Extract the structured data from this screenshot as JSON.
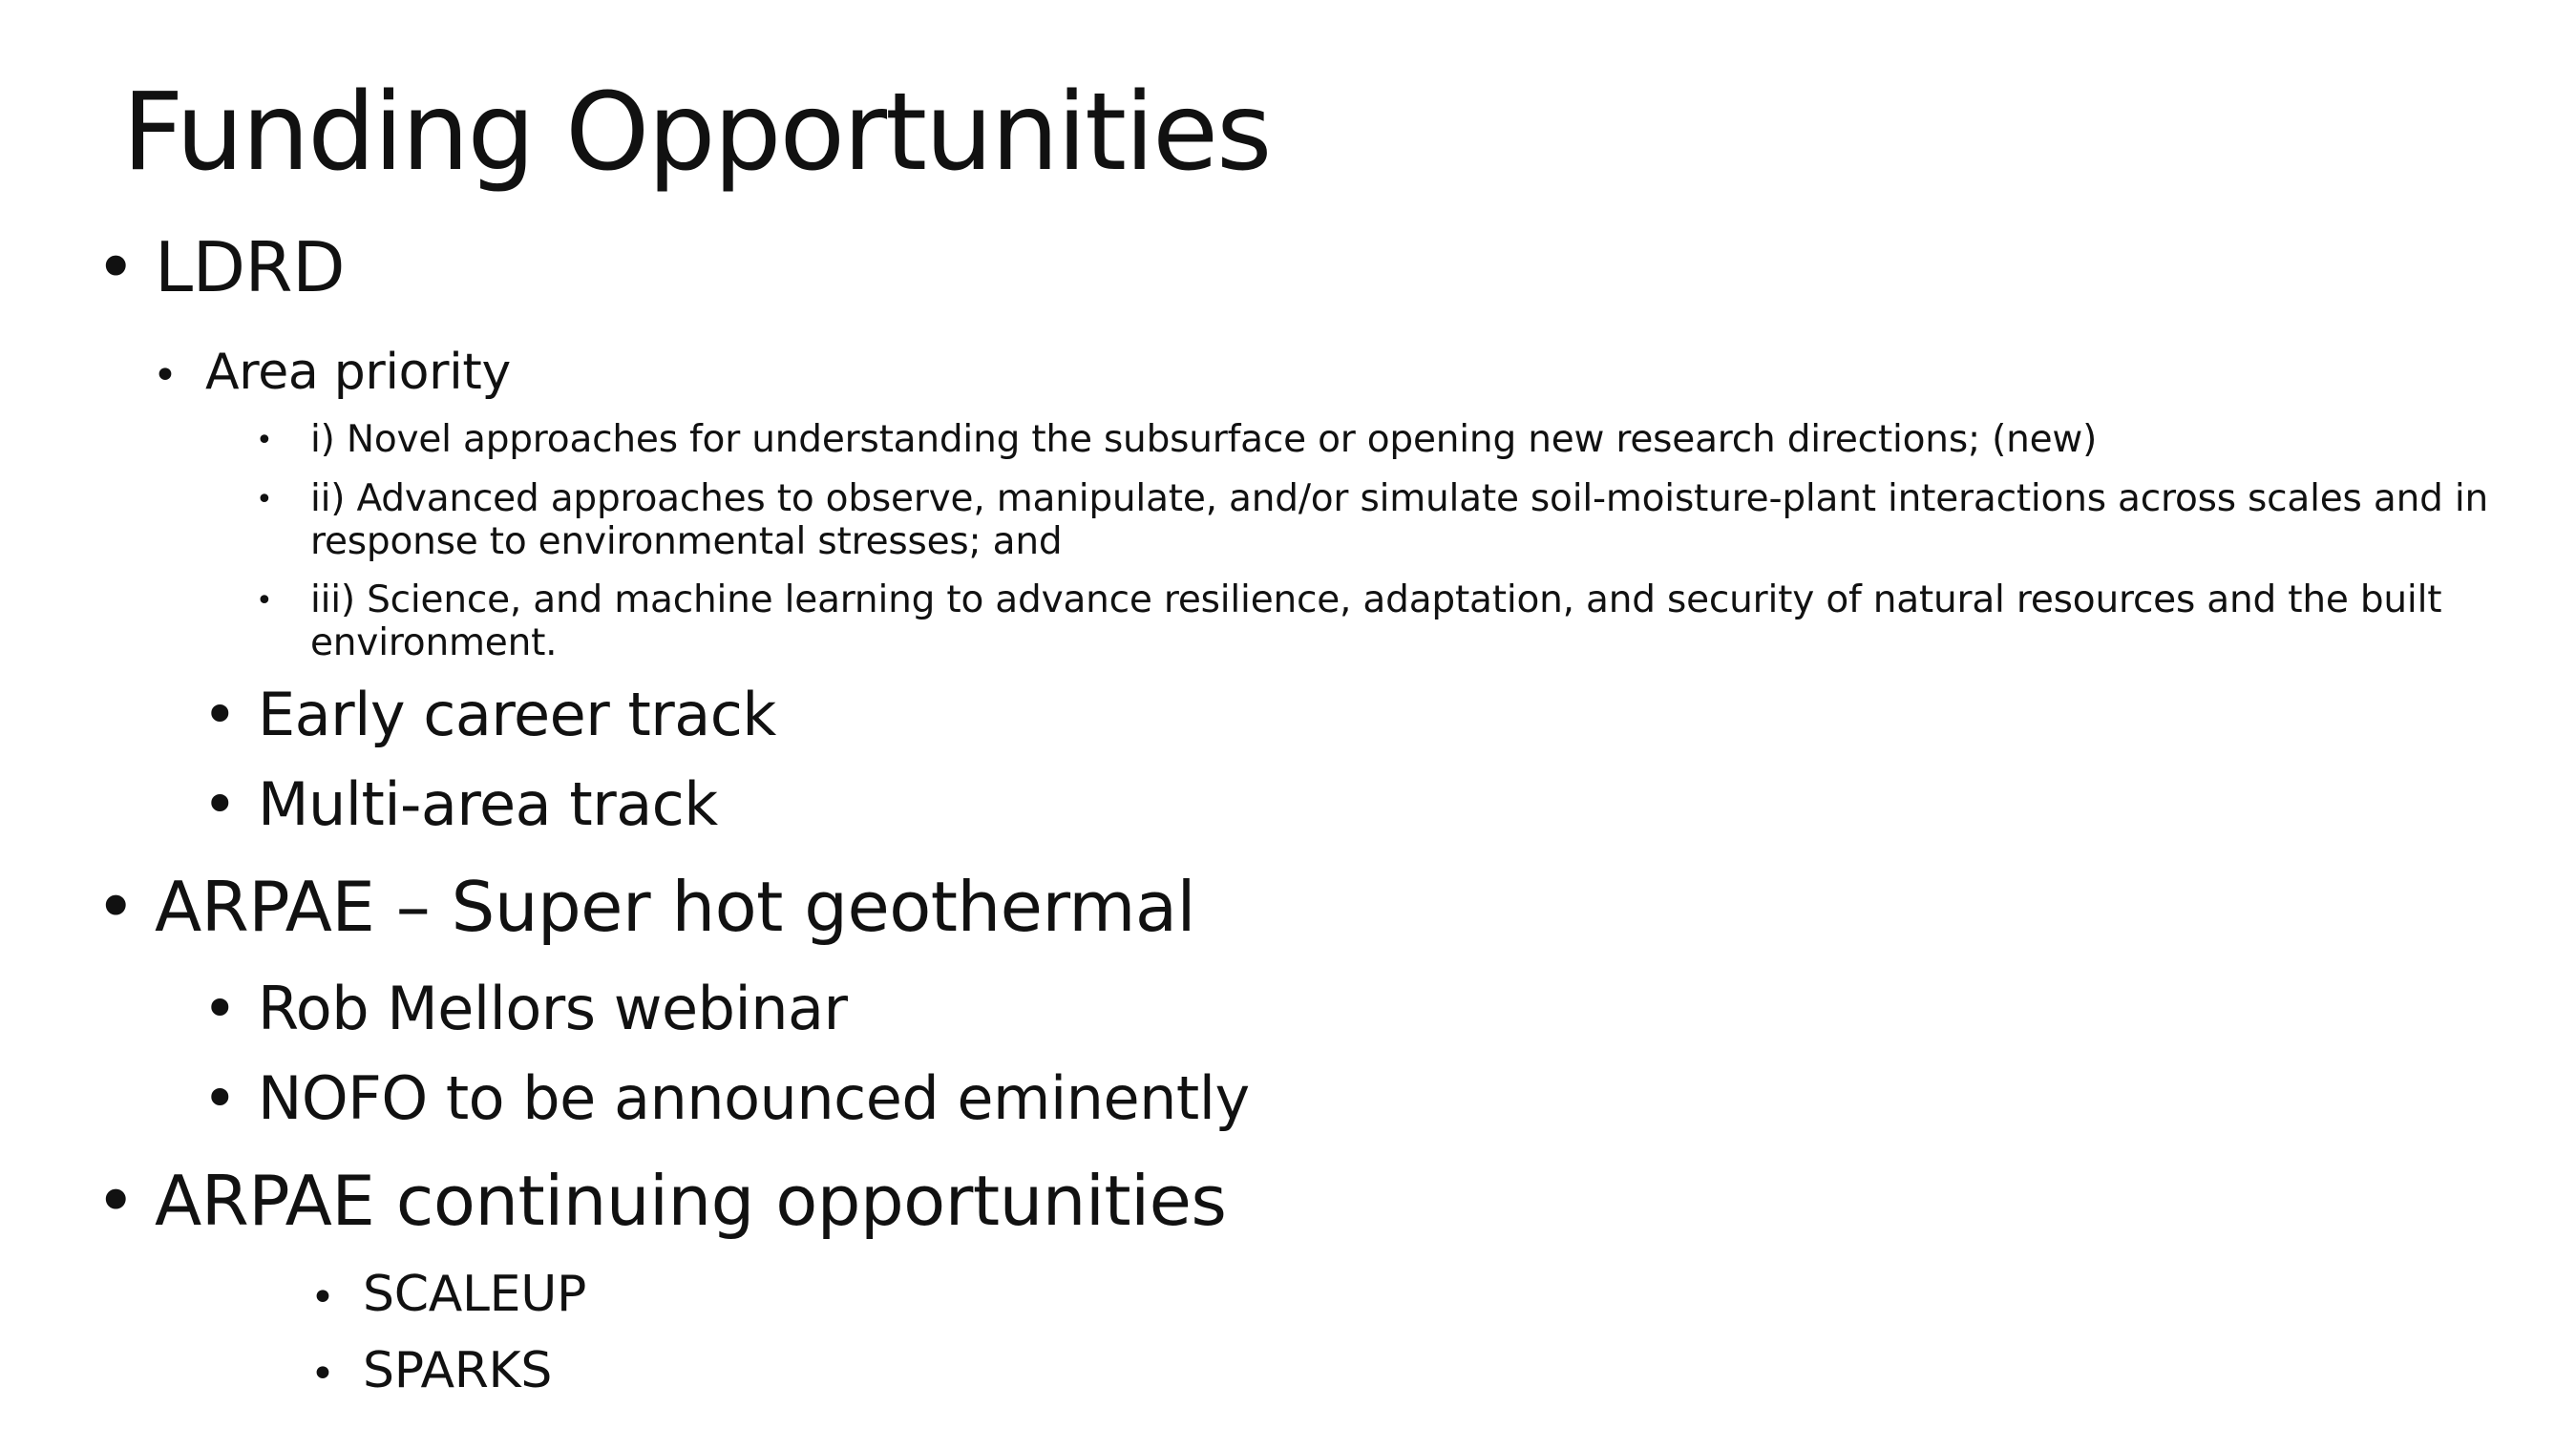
{
  "slide": {
    "title": "Funding Opportunities",
    "bullet_char": "•",
    "sections": [
      {
        "label": "LDRD",
        "area_priority": {
          "label": "Area priority",
          "items": [
            "i) Novel approaches for understanding the subsurface or opening new research directions; (new)",
            "ii) Advanced approaches to observe, manipulate, and/or simulate soil-moisture-plant interactions across scales and in response to environmental stresses; and",
            "iii) Science, and machine learning to advance resilience, adaptation, and security of natural resources and the built environment."
          ]
        },
        "tracks": [
          "Early career track",
          "Multi-area track"
        ]
      },
      {
        "label": "ARPAE – Super hot geothermal",
        "items": [
          "Rob Mellors webinar",
          "NOFO to be announced eminently"
        ]
      },
      {
        "label": "ARPAE continuing opportunities",
        "items": [
          "SCALEUP",
          "SPARKS"
        ]
      }
    ]
  }
}
